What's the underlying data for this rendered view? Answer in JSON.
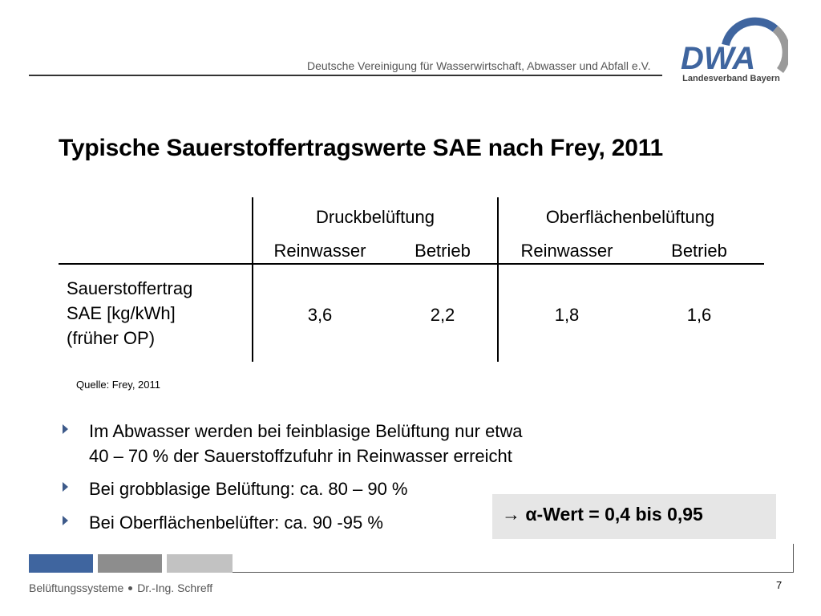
{
  "header": {
    "organization": "Deutsche Vereinigung für Wasserwirtschaft, Abwasser und Abfall e.V.",
    "logo_text": "DWA",
    "logo_subtitle": "Landesverband Bayern",
    "colors": {
      "blue": "#3f659f",
      "gray": "#9a9a9a"
    }
  },
  "title": "Typische Sauerstoffertragswerte SAE nach Frey, 2011",
  "table": {
    "groups": [
      "Druckbelüftung",
      "Oberflächenbelüftung"
    ],
    "subheaders": [
      "Reinwasser",
      "Betrieb",
      "Reinwasser",
      "Betrieb"
    ],
    "row_label": [
      "Sauerstoffertrag",
      "SAE [kg/kWh]",
      "(früher OP)"
    ],
    "values": [
      "3,6",
      "2,2",
      "1,8",
      "1,6"
    ]
  },
  "source": "Quelle: Frey, 2011",
  "bullets": [
    [
      "Im Abwasser werden bei feinblasige Belüftung nur etwa",
      "40 – 70 % der Sauerstoffzufuhr in Reinwasser erreicht"
    ],
    [
      "Bei grobblasige Belüftung: ca. 80 – 90 %"
    ],
    [
      "Bei Oberflächenbelüfter: ca. 90 -95 %"
    ]
  ],
  "highlight": "→ α-Wert = 0,4 bis 0,95",
  "footer": {
    "left": "Belüftungssysteme",
    "author": "Dr.-Ing. Schreff",
    "page": "7"
  }
}
